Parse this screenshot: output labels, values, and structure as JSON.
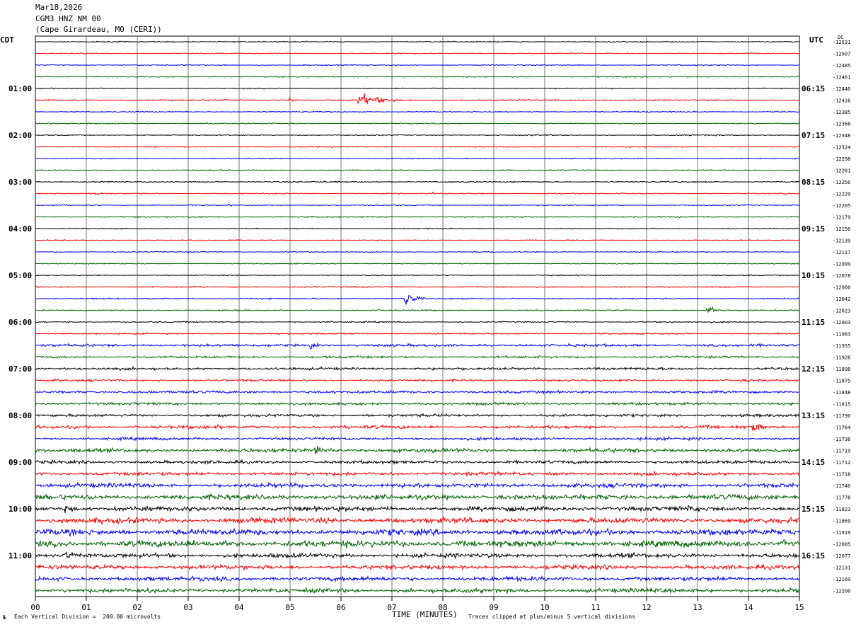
{
  "header": {
    "date": "Mar18,2026",
    "station": "CGM3 HNZ NM 00",
    "location": "(Cape Girardeau, MO (CERI))"
  },
  "left_axis_title": "CDT",
  "right_axis_title": "UTC",
  "dc_title": "DC",
  "footer": {
    "scale_note": "Each Vertical Division =  200.00 microvolts",
    "xlabel": "TIME (MINUTES)",
    "clip_note": "Traces clipped at plus/minus 5 vertical divisions",
    "corner_mark": "№"
  },
  "colors": {
    "trace_cycle": [
      "#000000",
      "#ff0000",
      "#0000ff",
      "#006400"
    ],
    "grid": "#000000"
  },
  "chart_data": {
    "type": "line",
    "title": "CGM3 HNZ NM 00",
    "xlabel": "TIME (MINUTES)",
    "ylabel": "",
    "x_range": [
      0,
      15
    ],
    "x_ticks": [
      "00",
      "01",
      "02",
      "03",
      "04",
      "05",
      "06",
      "07",
      "08",
      "09",
      "10",
      "11",
      "12",
      "13",
      "14",
      "15"
    ],
    "left_time_labels": [
      "01:00",
      "02:00",
      "03:00",
      "04:00",
      "05:00",
      "06:00",
      "07:00",
      "08:00",
      "09:00",
      "10:00",
      "11:00"
    ],
    "right_time_labels": [
      "06:15",
      "07:15",
      "08:15",
      "09:15",
      "10:15",
      "11:15",
      "12:15",
      "13:15",
      "14:15",
      "15:15",
      "16:15"
    ],
    "dc_offsets": [
      "-12531",
      "-12507",
      "-12485",
      "-12461",
      "-12440",
      "-12416",
      "-12385",
      "-12366",
      "-12348",
      "-12324",
      "-12298",
      "-12281",
      "-12256",
      "-12229",
      "-12205",
      "-12179",
      "-12156",
      "-12139",
      "-12117",
      "-12099",
      "-12078",
      "-12060",
      "-12042",
      "-12023",
      "-12003",
      "-11983",
      "-11955",
      "-11926",
      "-11898",
      "-11875",
      "-11848",
      "-11815",
      "-11790",
      "-11764",
      "-11738",
      "-11719",
      "-11712",
      "-11718",
      "-11740",
      "-11778",
      "-11823",
      "-11869",
      "-11919",
      "-12005",
      "-12077",
      "-12131",
      "-12169",
      "-12200"
    ],
    "series": [
      {
        "noise": [
          0.5,
          0.5,
          0.5,
          0.5,
          0.5,
          0.6,
          0.5,
          0.5,
          0.5,
          0.5,
          0.5,
          0.5,
          0.6,
          0.5,
          0.5,
          0.6,
          0.5,
          0.5,
          0.5,
          0.5,
          0.5,
          0.6,
          0.6,
          0.6,
          0.6,
          0.7,
          1.2,
          1.0,
          1.2,
          1.0,
          1.2,
          1.2,
          1.3,
          1.5,
          1.3,
          1.8,
          1.5,
          1.6,
          2.0,
          2.4,
          2.2,
          2.6,
          2.8,
          3.0,
          2.0,
          2.0,
          2.0,
          2.0
        ]
      },
      {
        "events": [
          {
            "row": 5,
            "minute": 5.0,
            "amp": 3,
            "dur": 0.3
          },
          {
            "row": 5,
            "minute": 6.35,
            "amp": 8,
            "dur": 1.2
          },
          {
            "row": 13,
            "minute": 1.2,
            "amp": 3,
            "dur": 0.4
          },
          {
            "row": 13,
            "minute": 7.8,
            "amp": 2,
            "dur": 0.2
          },
          {
            "row": 14,
            "minute": 3.8,
            "amp": 2,
            "dur": 0.2
          },
          {
            "row": 23,
            "minute": 13.2,
            "amp": 6,
            "dur": 0.4
          },
          {
            "row": 22,
            "minute": 7.22,
            "amp": 14,
            "dur": 0.5
          },
          {
            "row": 26,
            "minute": 5.4,
            "amp": 5,
            "dur": 0.4
          },
          {
            "row": 33,
            "minute": 3.6,
            "amp": 5,
            "dur": 0.3
          },
          {
            "row": 33,
            "minute": 14.1,
            "amp": 8,
            "dur": 0.5
          },
          {
            "row": 35,
            "minute": 5.5,
            "amp": 7,
            "dur": 0.8
          },
          {
            "row": 38,
            "minute": 7.2,
            "amp": 4,
            "dur": 0.6
          },
          {
            "row": 40,
            "minute": 0.6,
            "amp": 6,
            "dur": 0.5
          },
          {
            "row": 40,
            "minute": 12.8,
            "amp": 6,
            "dur": 0.3
          },
          {
            "row": 42,
            "minute": 13.9,
            "amp": 4,
            "dur": 0.8
          },
          {
            "row": 43,
            "minute": 14.7,
            "amp": 7,
            "dur": 0.4
          },
          {
            "row": 44,
            "minute": 0.6,
            "amp": 7,
            "dur": 0.6
          }
        ]
      }
    ]
  }
}
